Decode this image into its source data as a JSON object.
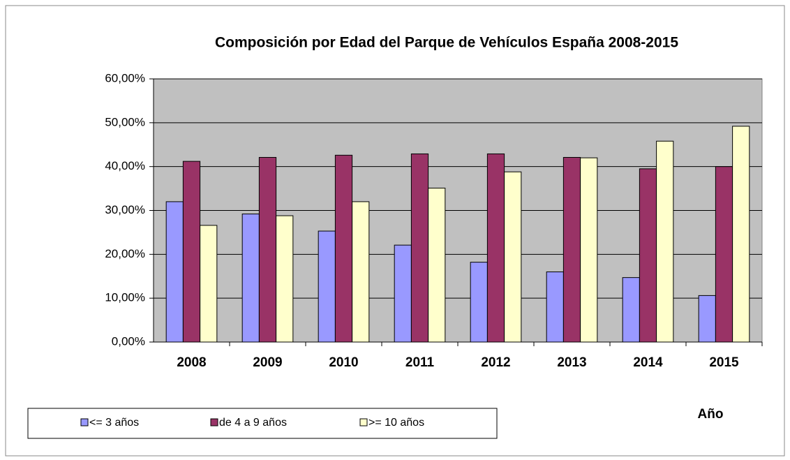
{
  "chart_data": {
    "type": "bar",
    "title": "Composición por Edad del Parque de Vehículos España 2008-2015",
    "x_label": "Año",
    "categories": [
      "2008",
      "2009",
      "2010",
      "2011",
      "2012",
      "2013",
      "2014",
      "2015"
    ],
    "series": [
      {
        "name": "<= 3 años",
        "color": "#9999ff",
        "values": [
          32.0,
          29.2,
          25.3,
          22.1,
          18.2,
          16.0,
          14.7,
          10.6
        ]
      },
      {
        "name": "de 4 a 9 años",
        "color": "#993366",
        "values": [
          41.2,
          42.1,
          42.6,
          42.9,
          42.9,
          42.1,
          39.5,
          40.0
        ]
      },
      {
        "name": ">= 10 años",
        "color": "#ffffcc",
        "values": [
          26.6,
          28.8,
          32.0,
          35.1,
          38.8,
          42.0,
          45.8,
          49.2
        ]
      }
    ],
    "ylim": [
      0,
      60
    ],
    "yticks": [
      {
        "value": 0,
        "label": "0,00%"
      },
      {
        "value": 10,
        "label": "10,00%"
      },
      {
        "value": 20,
        "label": "20,00%"
      },
      {
        "value": 30,
        "label": "30,00%"
      },
      {
        "value": 40,
        "label": "40,00%"
      },
      {
        "value": 50,
        "label": "50,00%"
      },
      {
        "value": 60,
        "label": "60,00%"
      }
    ],
    "grid": true,
    "legend": "bottom"
  }
}
